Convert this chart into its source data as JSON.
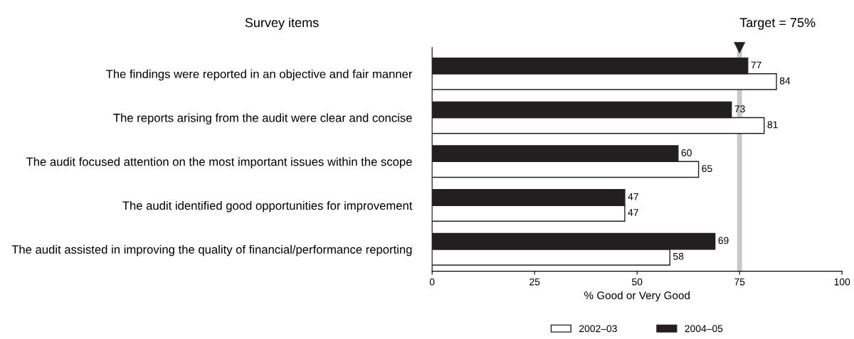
{
  "chart_data": {
    "type": "bar",
    "orientation": "horizontal",
    "title": "Survey items",
    "xlabel": "% Good or Very Good",
    "categories": [
      "The findings were reported in an objective and fair manner",
      "The reports arising from the audit were clear and concise",
      "The audit focused attention on the most important issues within the scope",
      "The audit identified good opportunities for improvement",
      "The audit assisted in improving the quality of financial/performance reporting"
    ],
    "series": [
      {
        "name": "2002–03",
        "color": "#ffffff",
        "values": [
          84,
          81,
          65,
          47,
          58
        ]
      },
      {
        "name": "2004–05",
        "color": "#231f20",
        "values": [
          77,
          73,
          60,
          47,
          69
        ]
      }
    ],
    "xlim": [
      0,
      100
    ],
    "xticks": [
      0,
      25,
      50,
      75,
      100
    ],
    "ref_lines": [
      {
        "axis": "x",
        "value": 75,
        "label": "Target = 75%",
        "color": "#c8c8c8"
      }
    ],
    "data_labels": true,
    "legend": "bottom",
    "grid": false
  }
}
